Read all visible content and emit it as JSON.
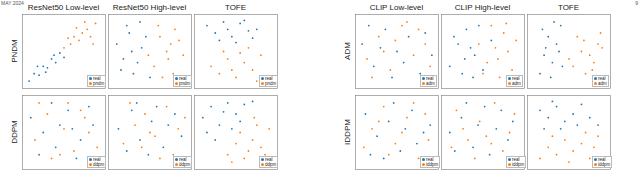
{
  "header": {
    "date": "MAY 2024",
    "page": "9"
  },
  "chart_data": [
    {
      "type": "scatter",
      "title": "ResNet50 Low-level",
      "ylabel": "PNDM",
      "xlim": [
        0,
        100
      ],
      "ylim": [
        0,
        100
      ],
      "tick_labels": false,
      "legend": "lower right",
      "series": [
        {
          "name": "real",
          "color": "#1f77b4",
          "marker": "circle",
          "x": [
            8,
            14,
            20,
            25,
            30,
            35,
            40,
            45,
            28,
            18,
            38,
            50
          ],
          "y": [
            10,
            20,
            18,
            30,
            28,
            40,
            35,
            48,
            22,
            30,
            45,
            42
          ]
        },
        {
          "name": "pndm",
          "color": "#ff7f0e",
          "marker": "circle",
          "x": [
            50,
            58,
            62,
            68,
            72,
            78,
            82,
            88,
            65,
            75,
            55,
            85
          ],
          "y": [
            55,
            60,
            70,
            65,
            75,
            80,
            70,
            88,
            82,
            90,
            68,
            60
          ]
        }
      ]
    },
    {
      "type": "scatter",
      "title": "ResNet50 High-level",
      "xlim": [
        0,
        100
      ],
      "ylim": [
        0,
        100
      ],
      "tick_labels": false,
      "legend": "lower right",
      "series": [
        {
          "name": "real",
          "color": "#1f77b4",
          "marker": "circle",
          "x": [
            10,
            18,
            25,
            30,
            40,
            22,
            35,
            15,
            45,
            28,
            50,
            38
          ],
          "y": [
            60,
            40,
            75,
            20,
            55,
            85,
            35,
            25,
            70,
            50,
            15,
            90
          ]
        },
        {
          "name": "pndm",
          "color": "#ff7f0e",
          "marker": "circle",
          "x": [
            55,
            62,
            70,
            78,
            85,
            60,
            72,
            90,
            65,
            80,
            48,
            75
          ],
          "y": [
            30,
            70,
            50,
            20,
            65,
            85,
            40,
            45,
            15,
            80,
            45,
            60
          ]
        }
      ]
    },
    {
      "type": "scatter",
      "title": "TOFE",
      "xlim": [
        0,
        100
      ],
      "ylim": [
        0,
        100
      ],
      "tick_labels": false,
      "legend": "lower right",
      "series": [
        {
          "name": "real",
          "color": "#1f77b4",
          "marker": "circle",
          "x": [
            15,
            25,
            35,
            45,
            55,
            65,
            75,
            30,
            50,
            70,
            40,
            60
          ],
          "y": [
            85,
            75,
            90,
            70,
            88,
            78,
            80,
            65,
            62,
            68,
            80,
            92
          ]
        },
        {
          "name": "pndm",
          "color": "#ff7f0e",
          "marker": "circle",
          "x": [
            20,
            30,
            40,
            50,
            60,
            70,
            80,
            35,
            55,
            75,
            45,
            65
          ],
          "y": [
            30,
            20,
            40,
            15,
            35,
            25,
            45,
            50,
            48,
            10,
            25,
            55
          ]
        }
      ]
    },
    {
      "type": "scatter",
      "ylabel": "DDPM",
      "xlim": [
        0,
        100
      ],
      "ylim": [
        0,
        100
      ],
      "tick_labels": false,
      "legend": "lower right",
      "series": [
        {
          "name": "real",
          "color": "#1f77b4",
          "marker": "circle",
          "x": [
            10,
            25,
            40,
            55,
            70,
            85,
            20,
            45,
            65,
            80,
            35,
            60
          ],
          "y": [
            70,
            50,
            30,
            80,
            40,
            60,
            20,
            60,
            15,
            85,
            90,
            55
          ]
        },
        {
          "name": "ddpm",
          "color": "#ff7f0e",
          "marker": "circle",
          "x": [
            15,
            30,
            50,
            62,
            75,
            90,
            35,
            55,
            80,
            20,
            45,
            70
          ],
          "y": [
            40,
            75,
            55,
            25,
            70,
            30,
            15,
            90,
            50,
            90,
            20,
            80
          ]
        }
      ]
    },
    {
      "type": "scatter",
      "xlim": [
        0,
        100
      ],
      "ylim": [
        0,
        100
      ],
      "tick_labels": false,
      "legend": "lower right",
      "series": [
        {
          "name": "real",
          "color": "#1f77b4",
          "marker": "circle",
          "x": [
            12,
            28,
            38,
            52,
            66,
            80,
            22,
            48,
            72,
            88,
            34,
            58
          ],
          "y": [
            55,
            80,
            40,
            65,
            30,
            75,
            25,
            20,
            60,
            45,
            90,
            85
          ]
        },
        {
          "name": "ddpm",
          "color": "#ff7f0e",
          "marker": "circle",
          "x": [
            18,
            32,
            44,
            56,
            70,
            84,
            26,
            62,
            78,
            92,
            40,
            50
          ],
          "y": [
            35,
            60,
            75,
            45,
            85,
            55,
            90,
            15,
            20,
            70,
            30,
            50
          ]
        }
      ]
    },
    {
      "type": "scatter",
      "xlim": [
        0,
        100
      ],
      "ylim": [
        0,
        100
      ],
      "tick_labels": false,
      "legend": "lower right",
      "series": [
        {
          "name": "real",
          "color": "#1f77b4",
          "marker": "circle",
          "x": [
            10,
            20,
            30,
            40,
            50,
            60,
            15,
            25,
            35,
            45,
            55,
            70
          ],
          "y": [
            70,
            85,
            60,
            90,
            75,
            88,
            50,
            40,
            78,
            55,
            65,
            92
          ]
        },
        {
          "name": "ddpm",
          "color": "#ff7f0e",
          "marker": "circle",
          "x": [
            40,
            50,
            60,
            70,
            80,
            90,
            55,
            65,
            75,
            85,
            45,
            72
          ],
          "y": [
            20,
            35,
            15,
            40,
            30,
            55,
            50,
            25,
            60,
            20,
            10,
            70
          ]
        }
      ]
    },
    {
      "type": "scatter",
      "title": "CLIP Low-level",
      "ylabel": "ADM",
      "xlim": [
        0,
        100
      ],
      "ylim": [
        0,
        100
      ],
      "tick_labels": false,
      "legend": "lower right",
      "series": [
        {
          "name": "real",
          "color": "#1f77b4",
          "marker": "circle",
          "x": [
            8,
            22,
            36,
            50,
            64,
            78,
            92,
            30,
            58,
            84,
            16,
            44
          ],
          "y": [
            60,
            30,
            80,
            50,
            70,
            20,
            45,
            55,
            35,
            75,
            85,
            15
          ]
        },
        {
          "name": "adm",
          "color": "#ff7f0e",
          "marker": "circle",
          "x": [
            14,
            28,
            42,
            56,
            70,
            84,
            20,
            48,
            62,
            90,
            34,
            76
          ],
          "y": [
            40,
            70,
            25,
            85,
            45,
            60,
            15,
            65,
            90,
            30,
            50,
            80
          ]
        }
      ]
    },
    {
      "type": "scatter",
      "title": "CLIP High-level",
      "xlim": [
        0,
        100
      ],
      "ylim": [
        0,
        100
      ],
      "tick_labels": false,
      "legend": "lower right",
      "series": [
        {
          "name": "real",
          "color": "#1f77b4",
          "marker": "circle",
          "x": [
            10,
            20,
            30,
            40,
            15,
            25,
            35,
            45,
            50,
            60,
            28,
            38
          ],
          "y": [
            30,
            60,
            80,
            45,
            70,
            20,
            55,
            85,
            25,
            65,
            40,
            15
          ]
        },
        {
          "name": "adm",
          "color": "#ff7f0e",
          "marker": "circle",
          "x": [
            55,
            65,
            75,
            85,
            60,
            70,
            80,
            90,
            45,
            50,
            68,
            78
          ],
          "y": [
            35,
            55,
            75,
            25,
            85,
            15,
            50,
            65,
            60,
            20,
            40,
            88
          ]
        }
      ]
    },
    {
      "type": "scatter",
      "title": "TOFE",
      "xlim": [
        0,
        100
      ],
      "ylim": [
        0,
        100
      ],
      "tick_labels": false,
      "legend": "lower right",
      "series": [
        {
          "name": "real",
          "color": "#1f77b4",
          "marker": "circle",
          "x": [
            15,
            20,
            25,
            30,
            35,
            40,
            18,
            28,
            38,
            22,
            32,
            42
          ],
          "y": [
            20,
            45,
            70,
            35,
            60,
            85,
            80,
            15,
            50,
            55,
            90,
            30
          ]
        },
        {
          "name": "adm",
          "color": "#ff7f0e",
          "marker": "circle",
          "x": [
            55,
            65,
            75,
            85,
            60,
            70,
            80,
            90,
            50,
            68,
            78,
            88
          ],
          "y": [
            30,
            50,
            45,
            60,
            70,
            20,
            35,
            55,
            40,
            65,
            25,
            75
          ]
        }
      ]
    },
    {
      "type": "scatter",
      "ylabel": "IDDPM",
      "xlim": [
        0,
        100
      ],
      "ylim": [
        0,
        100
      ],
      "tick_labels": false,
      "legend": "lower right",
      "series": [
        {
          "name": "real",
          "color": "#1f77b4",
          "marker": "circle",
          "x": [
            12,
            26,
            40,
            54,
            68,
            82,
            18,
            46,
            74,
            90,
            34,
            60
          ],
          "y": [
            75,
            45,
            65,
            25,
            80,
            50,
            20,
            90,
            35,
            60,
            15,
            55
          ]
        },
        {
          "name": "iddpm",
          "color": "#ff7f0e",
          "marker": "circle",
          "x": [
            20,
            34,
            48,
            62,
            76,
            88,
            10,
            40,
            56,
            70,
            28,
            84
          ],
          "y": [
            55,
            85,
            35,
            70,
            15,
            40,
            30,
            20,
            50,
            90,
            65,
            75
          ]
        }
      ]
    },
    {
      "type": "scatter",
      "xlim": [
        0,
        100
      ],
      "ylim": [
        0,
        100
      ],
      "tick_labels": false,
      "legend": "lower right",
      "series": [
        {
          "name": "real",
          "color": "#1f77b4",
          "marker": "circle",
          "x": [
            10,
            24,
            38,
            52,
            66,
            80,
            16,
            30,
            58,
            86,
            44,
            72
          ],
          "y": [
            50,
            70,
            30,
            85,
            55,
            40,
            25,
            90,
            20,
            65,
            60,
            80
          ]
        },
        {
          "name": "iddpm",
          "color": "#ff7f0e",
          "marker": "circle",
          "x": [
            18,
            32,
            46,
            60,
            74,
            88,
            26,
            40,
            64,
            82,
            54,
            12
          ],
          "y": [
            80,
            40,
            65,
            35,
            25,
            75,
            55,
            15,
            90,
            50,
            45,
            30
          ]
        }
      ]
    },
    {
      "type": "scatter",
      "xlim": [
        0,
        100
      ],
      "ylim": [
        0,
        100
      ],
      "tick_labels": false,
      "legend": "lower right",
      "series": [
        {
          "name": "real",
          "color": "#1f77b4",
          "marker": "circle",
          "x": [
            15,
            25,
            35,
            45,
            55,
            65,
            75,
            85,
            20,
            40,
            60,
            30
          ],
          "y": [
            80,
            70,
            85,
            65,
            75,
            88,
            70,
            60,
            55,
            55,
            60,
            92
          ]
        },
        {
          "name": "iddpm",
          "color": "#ff7f0e",
          "marker": "circle",
          "x": [
            15,
            25,
            35,
            45,
            55,
            65,
            75,
            85,
            30,
            50,
            70,
            80
          ],
          "y": [
            15,
            30,
            20,
            40,
            25,
            35,
            15,
            45,
            45,
            10,
            50,
            30
          ]
        }
      ]
    }
  ]
}
